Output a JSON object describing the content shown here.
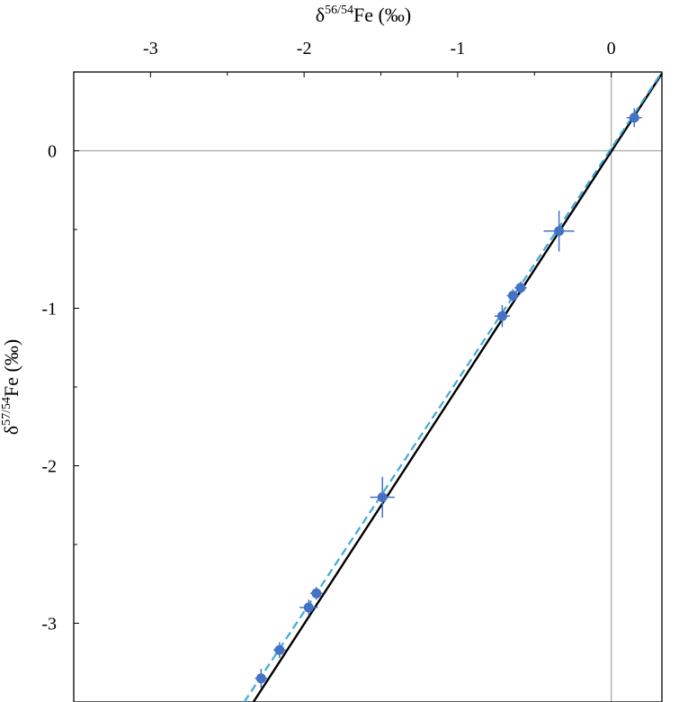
{
  "chart_data": {
    "type": "scatter",
    "title": "",
    "xlabel": {
      "prefix": "δ",
      "sup": "56/54",
      "suffix": "Fe (‰)"
    },
    "ylabel": {
      "prefix": "δ",
      "sup": "57/54",
      "suffix": "Fe (‰)"
    },
    "x_axis_position": "top",
    "xlim": [
      -3.5,
      0.33
    ],
    "ylim": [
      -3.5,
      0.5
    ],
    "xticks": [
      -3,
      -2,
      -1,
      0
    ],
    "xtick_labels": [
      "-3",
      "-2",
      "-1",
      "0"
    ],
    "yticks": [
      0,
      -1,
      -2,
      -3
    ],
    "ytick_labels": [
      "0",
      "-1",
      "-2",
      "-3"
    ],
    "reference_lines": {
      "x": 0,
      "y": 0,
      "color": "#a6a6a6"
    },
    "grid": false,
    "legend": "none",
    "series": [
      {
        "kind": "points",
        "color": "#4472c4",
        "points": [
          {
            "x": 0.15,
            "y": 0.21,
            "xerr": 0.05,
            "yerr": 0.06
          },
          {
            "x": -0.34,
            "y": -0.51,
            "xerr": 0.1,
            "yerr": 0.13
          },
          {
            "x": -0.59,
            "y": -0.87,
            "xerr": 0.04,
            "yerr": 0.04
          },
          {
            "x": -0.64,
            "y": -0.92,
            "xerr": 0.04,
            "yerr": 0.04
          },
          {
            "x": -0.71,
            "y": -1.05,
            "xerr": 0.05,
            "yerr": 0.07
          },
          {
            "x": -1.49,
            "y": -2.2,
            "xerr": 0.08,
            "yerr": 0.13
          },
          {
            "x": -1.92,
            "y": -2.81,
            "xerr": 0.04,
            "yerr": 0.04
          },
          {
            "x": -1.97,
            "y": -2.9,
            "xerr": 0.06,
            "yerr": 0.05
          },
          {
            "x": -2.16,
            "y": -3.17,
            "xerr": 0.04,
            "yerr": 0.05
          },
          {
            "x": -2.28,
            "y": -3.35,
            "xerr": 0.04,
            "yerr": 0.06
          }
        ]
      },
      {
        "kind": "line",
        "style": "solid",
        "color": "#000000",
        "points": [
          [
            -2.33,
            -3.5
          ],
          [
            0.33,
            0.49
          ]
        ]
      },
      {
        "kind": "line",
        "style": "dashed",
        "color": "#3fa9dc",
        "points": [
          [
            -2.39,
            -3.5
          ],
          [
            0.33,
            0.5
          ]
        ]
      }
    ]
  }
}
